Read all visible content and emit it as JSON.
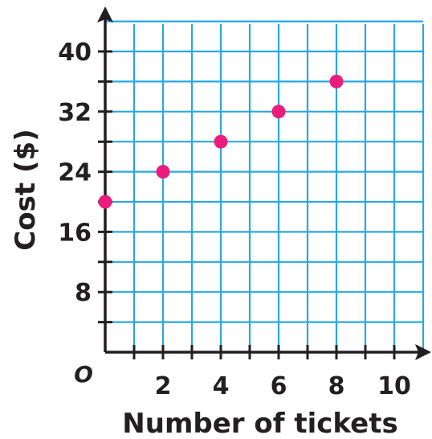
{
  "chart_data": {
    "type": "scatter",
    "xlabel": "Number of tickets",
    "ylabel": "Cost ($)",
    "origin_label": "O",
    "xlim": [
      0,
      11
    ],
    "ylim": [
      0,
      44
    ],
    "x_tick_labels": [
      "2",
      "4",
      "6",
      "8",
      "10"
    ],
    "y_tick_labels": [
      "8",
      "16",
      "24",
      "32",
      "40"
    ],
    "x_ticks": [
      2,
      4,
      6,
      8,
      10
    ],
    "y_ticks": [
      8,
      16,
      24,
      32,
      40
    ],
    "x_grid_step": 1,
    "y_grid_step": 4,
    "grid": true,
    "points": [
      {
        "x": 0,
        "y": 20
      },
      {
        "x": 2,
        "y": 24
      },
      {
        "x": 4,
        "y": 28
      },
      {
        "x": 6,
        "y": 32
      },
      {
        "x": 8,
        "y": 36
      }
    ],
    "colors": {
      "point": "#ec1c7d",
      "grid": "#29a8e0",
      "axis": "#231f20"
    }
  }
}
